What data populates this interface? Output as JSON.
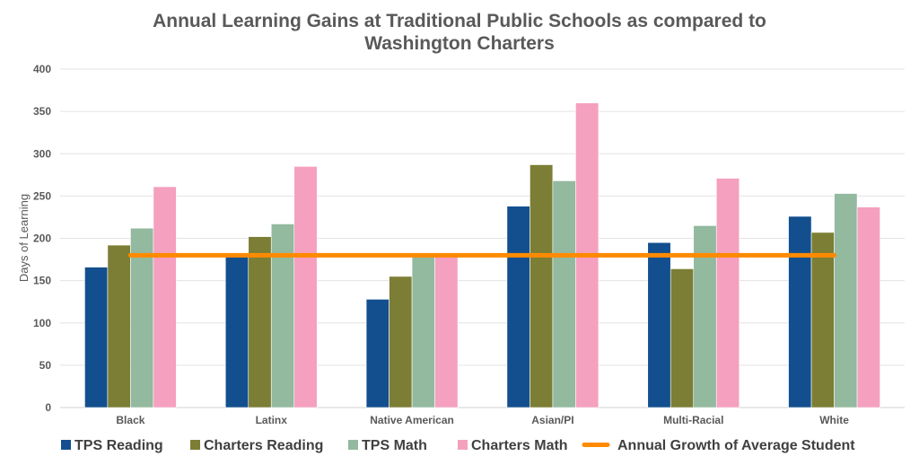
{
  "chart_data": {
    "type": "bar",
    "title_lines": [
      "Annual Learning Gains at Traditional Public Schools as compared to",
      "Washington Charters"
    ],
    "xlabel": "",
    "ylabel": "Days of Learning",
    "ylim": [
      0,
      400
    ],
    "yticks": [
      0,
      50,
      100,
      150,
      200,
      250,
      300,
      350,
      400
    ],
    "grid": true,
    "legend_position": "bottom",
    "categories": [
      "Black",
      "Latinx",
      "Native American",
      "Asian/PI",
      "Multi-Racial",
      "White"
    ],
    "series": [
      {
        "name": "TPS Reading",
        "color": "#134F8E",
        "values": [
          166,
          178,
          128,
          238,
          195,
          226
        ]
      },
      {
        "name": "Charters Reading",
        "color": "#7B7E34",
        "values": [
          192,
          202,
          155,
          287,
          164,
          207
        ]
      },
      {
        "name": "TPS Math",
        "color": "#93B99F",
        "values": [
          212,
          217,
          178,
          268,
          215,
          253
        ]
      },
      {
        "name": "Charters Math",
        "color": "#F4A0BE",
        "values": [
          261,
          285,
          178,
          360,
          271,
          237
        ]
      }
    ],
    "reference_line": {
      "name": "Annual Growth of Average Student",
      "color": "#FF8A00",
      "value": 180
    }
  }
}
